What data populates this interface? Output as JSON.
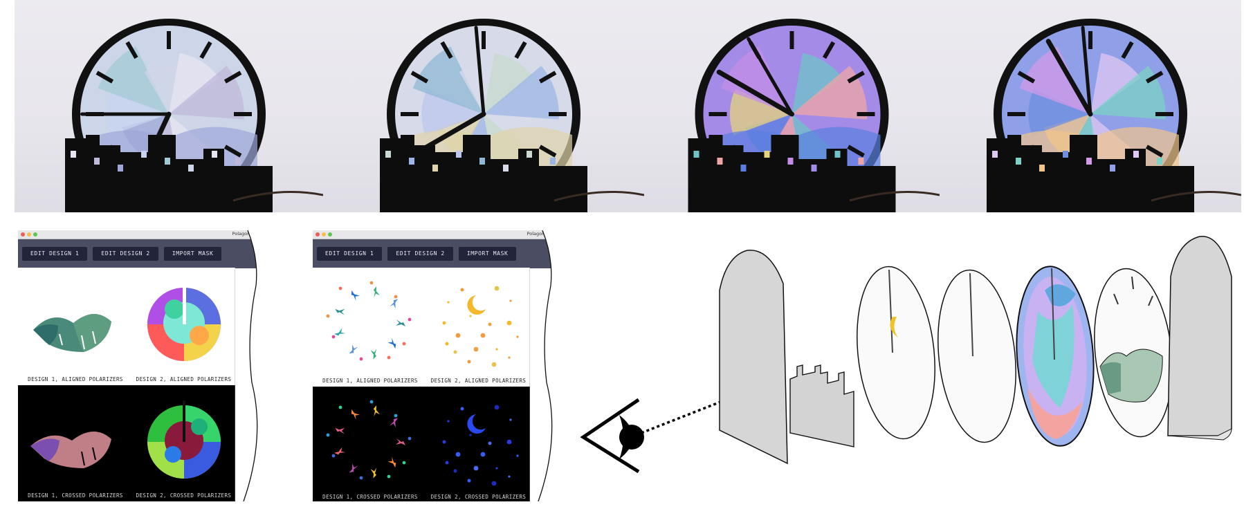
{
  "windows": [
    {
      "title": "Polagon Studio",
      "buttons": [
        "EDIT DESIGN 1",
        "EDIT DESIGN 2",
        "IMPORT MASK"
      ],
      "captions": [
        "DESIGN 1, ALIGNED POLARIZERS",
        "DESIGN 2, ALIGNED POLARIZERS",
        "DESIGN 1, CROSSED POLARIZERS",
        "DESIGN 2, CROSSED POLARIZERS"
      ]
    },
    {
      "title": "Polagon Studio",
      "buttons": [
        "EDIT DESIGN 1",
        "EDIT DESIGN 2",
        "IMPORT MASK"
      ],
      "captions": [
        "DESIGN 1, ALIGNED POLARIZERS",
        "DESIGN 2, ALIGNED POLARIZERS",
        "DESIGN 1, CROSSED POLARIZERS",
        "DESIGN 2, CROSSED POLARIZERS"
      ]
    }
  ],
  "icons": [
    "clock-photo",
    "eye-icon",
    "exploded-view"
  ],
  "colors": {
    "toolbar": "#4b4d63",
    "button": "#22243a",
    "close": "#ec5f58",
    "minimize": "#f5bf4f",
    "zoom": "#61c554"
  }
}
